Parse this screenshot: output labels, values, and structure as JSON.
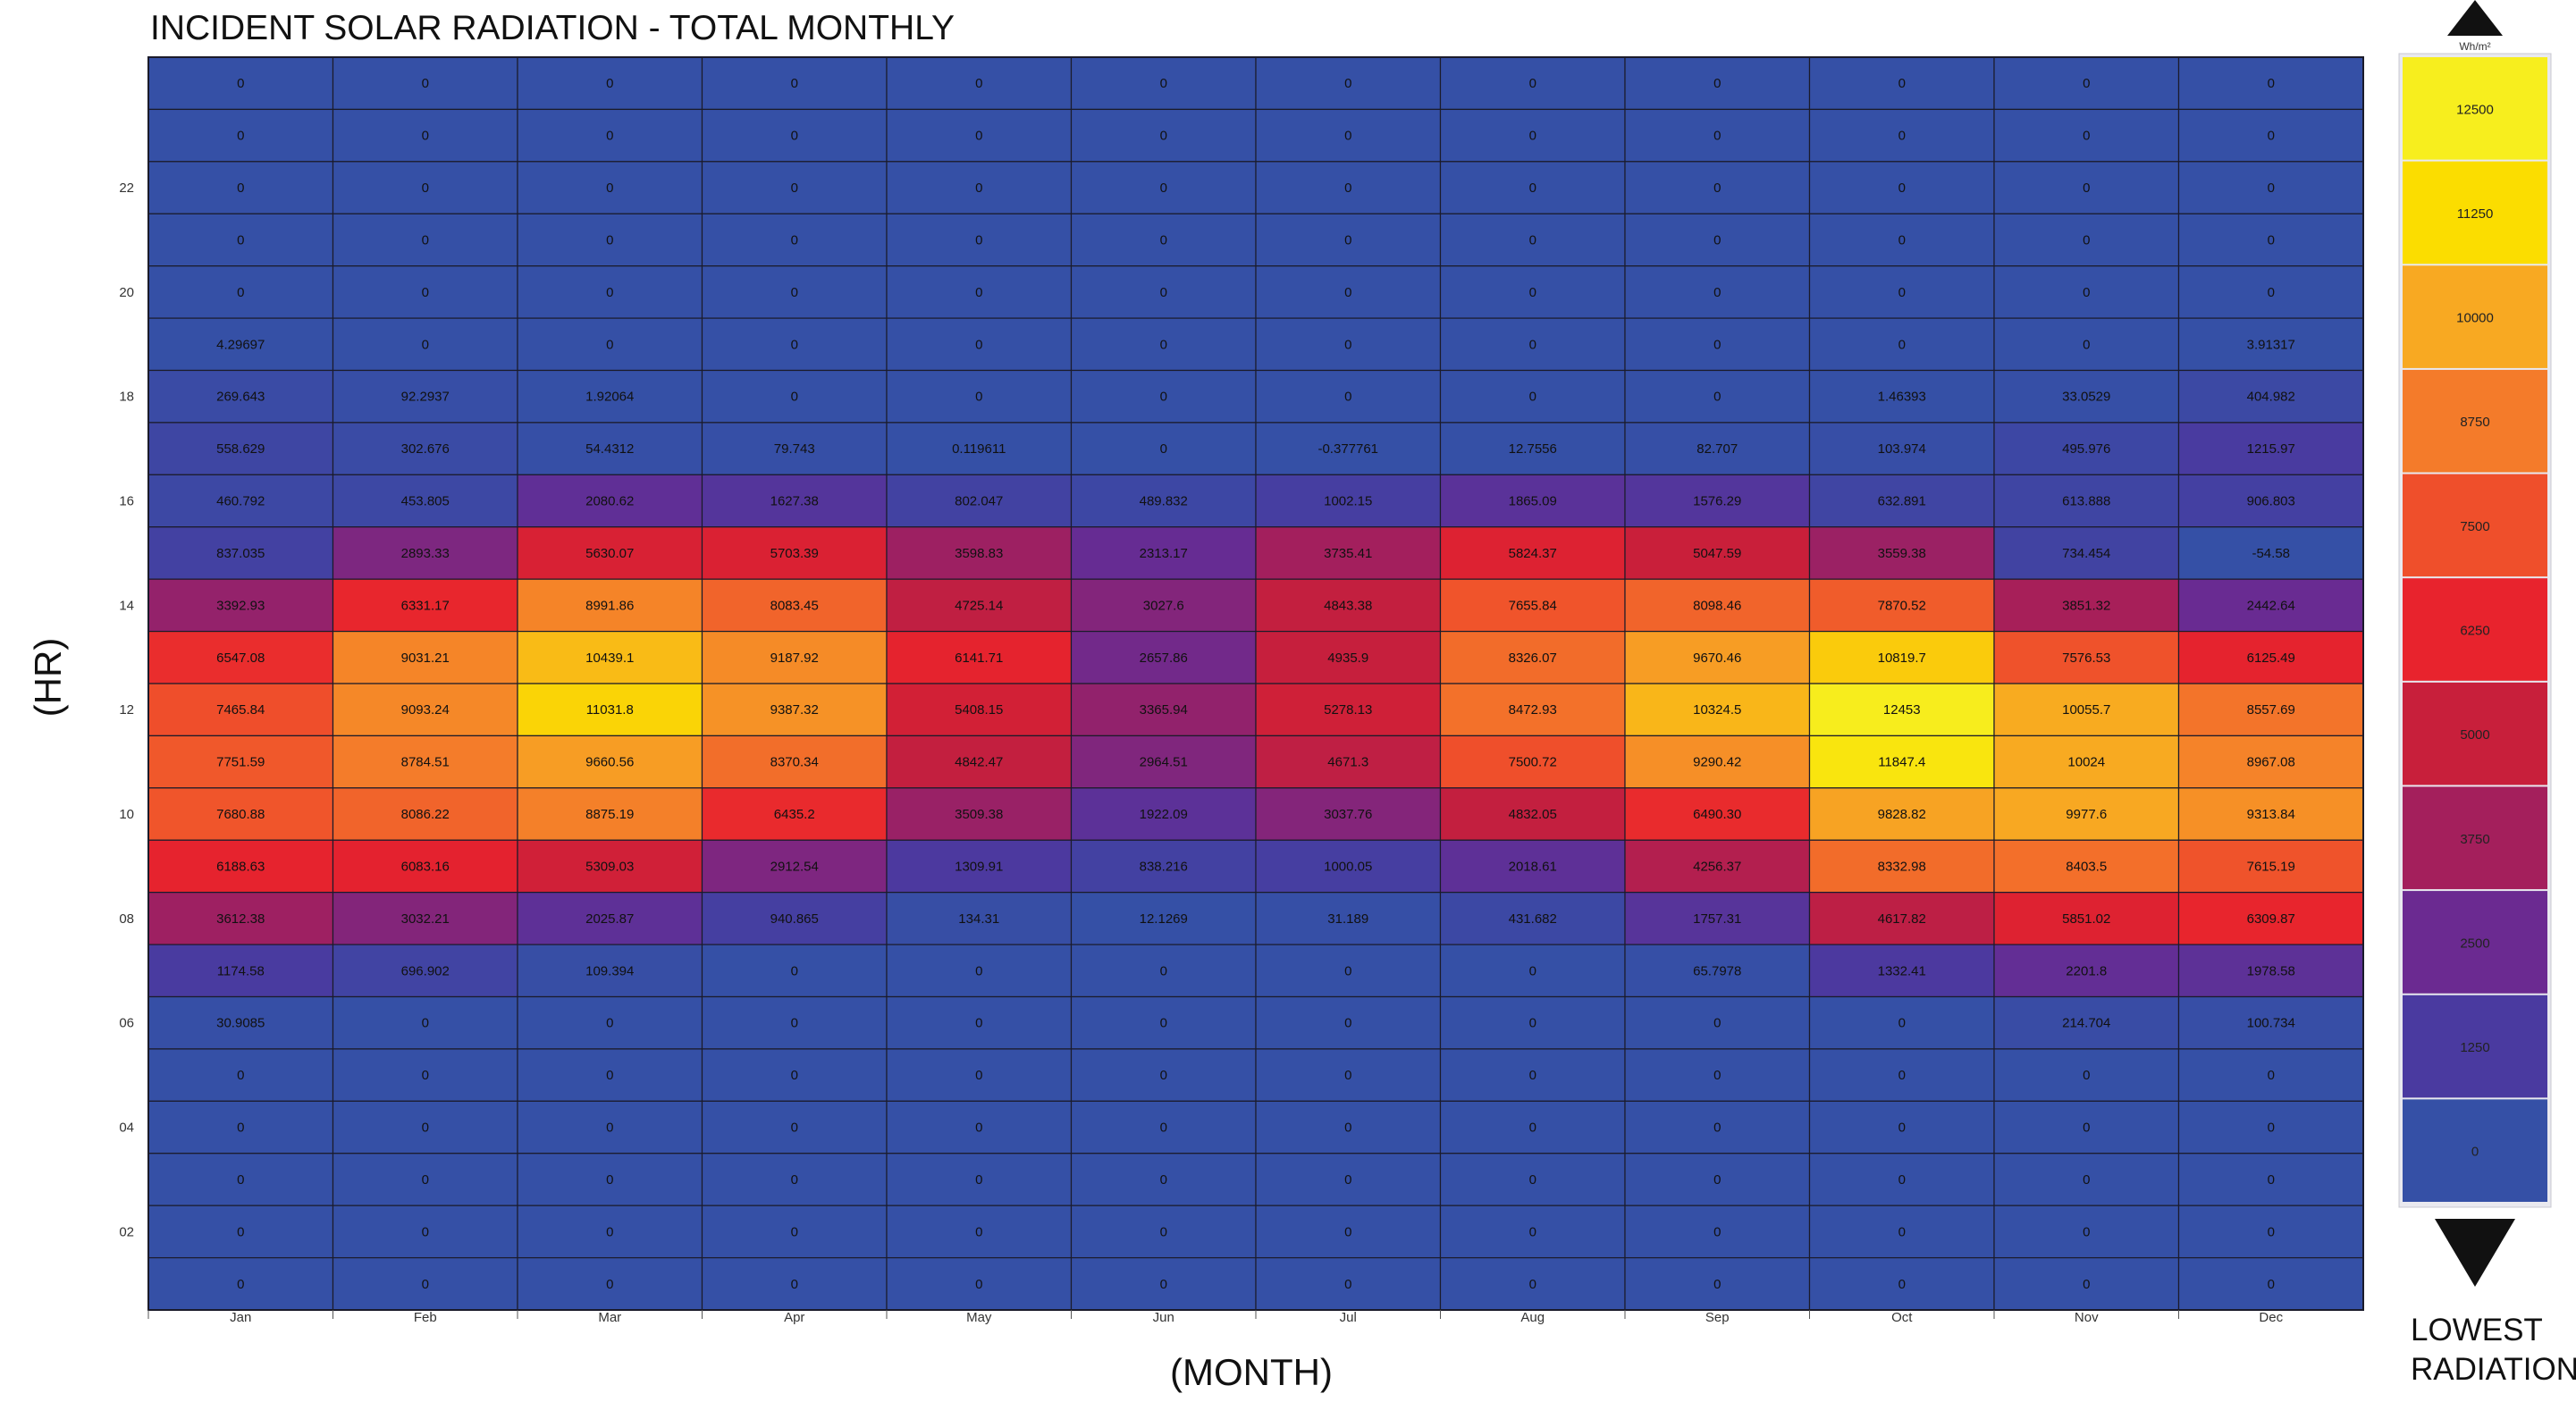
{
  "chart_data": {
    "type": "heatmap",
    "title": "INCIDENT SOLAR RADIATION - TOTAL MONTHLY",
    "xlabel": "(MONTH)",
    "ylabel": "(HR)",
    "months": [
      "Jan",
      "Feb",
      "Mar",
      "Apr",
      "May",
      "Jun",
      "Jul",
      "Aug",
      "Sep",
      "Oct",
      "Nov",
      "Dec"
    ],
    "rows": [
      [
        "0",
        "0",
        "0",
        "0",
        "0",
        "0",
        "0",
        "0",
        "0",
        "0",
        "0",
        "0"
      ],
      [
        "0",
        "0",
        "0",
        "0",
        "0",
        "0",
        "0",
        "0",
        "0",
        "0",
        "0",
        "0"
      ],
      [
        "0",
        "0",
        "0",
        "0",
        "0",
        "0",
        "0",
        "0",
        "0",
        "0",
        "0",
        "0"
      ],
      [
        "0",
        "0",
        "0",
        "0",
        "0",
        "0",
        "0",
        "0",
        "0",
        "0",
        "0",
        "0"
      ],
      [
        "0",
        "0",
        "0",
        "0",
        "0",
        "0",
        "0",
        "0",
        "0",
        "0",
        "0",
        "0"
      ],
      [
        "4.29697",
        "0",
        "0",
        "0",
        "0",
        "0",
        "0",
        "0",
        "0",
        "0",
        "0",
        "3.91317"
      ],
      [
        "269.643",
        "92.2937",
        "1.92064",
        "0",
        "0",
        "0",
        "0",
        "0",
        "0",
        "1.46393",
        "33.0529",
        "404.982"
      ],
      [
        "558.629",
        "302.676",
        "54.4312",
        "79.743",
        "0.119611",
        "0",
        "-0.377761",
        "12.7556",
        "82.707",
        "103.974",
        "495.976",
        "1215.97"
      ],
      [
        "460.792",
        "453.805",
        "2080.62",
        "1627.38",
        "802.047",
        "489.832",
        "1002.15",
        "1865.09",
        "1576.29",
        "632.891",
        "613.888",
        "906.803"
      ],
      [
        "837.035",
        "2893.33",
        "5630.07",
        "5703.39",
        "3598.83",
        "2313.17",
        "3735.41",
        "5824.37",
        "5047.59",
        "3559.38",
        "734.454",
        "-54.58"
      ],
      [
        "3392.93",
        "6331.17",
        "8991.86",
        "8083.45",
        "4725.14",
        "3027.6",
        "4843.38",
        "7655.84",
        "8098.46",
        "7870.52",
        "3851.32",
        "2442.64"
      ],
      [
        "6547.08",
        "9031.21",
        "10439.1",
        "9187.92",
        "6141.71",
        "2657.86",
        "4935.9",
        "8326.07",
        "9670.46",
        "10819.7",
        "7576.53",
        "6125.49"
      ],
      [
        "7465.84",
        "9093.24",
        "11031.8",
        "9387.32",
        "5408.15",
        "3365.94",
        "5278.13",
        "8472.93",
        "10324.5",
        "12453",
        "10055.7",
        "8557.69"
      ],
      [
        "7751.59",
        "8784.51",
        "9660.56",
        "8370.34",
        "4842.47",
        "2964.51",
        "4671.3",
        "7500.72",
        "9290.42",
        "11847.4",
        "10024",
        "8967.08"
      ],
      [
        "7680.88",
        "8086.22",
        "8875.19",
        "6435.2",
        "3509.38",
        "1922.09",
        "3037.76",
        "4832.05",
        "6490.30",
        "9828.82",
        "9977.6",
        "9313.84"
      ],
      [
        "6188.63",
        "6083.16",
        "5309.03",
        "2912.54",
        "1309.91",
        "838.216",
        "1000.05",
        "2018.61",
        "4256.37",
        "8332.98",
        "8403.5",
        "7615.19"
      ],
      [
        "3612.38",
        "3032.21",
        "2025.87",
        "940.865",
        "134.31",
        "12.1269",
        "31.189",
        "431.682",
        "1757.31",
        "4617.82",
        "5851.02",
        "6309.87"
      ],
      [
        "1174.58",
        "696.902",
        "109.394",
        "0",
        "0",
        "0",
        "0",
        "0",
        "65.7978",
        "1332.41",
        "2201.8",
        "1978.58"
      ],
      [
        "30.9085",
        "0",
        "0",
        "0",
        "0",
        "0",
        "0",
        "0",
        "0",
        "0",
        "214.704",
        "100.734"
      ],
      [
        "0",
        "0",
        "0",
        "0",
        "0",
        "0",
        "0",
        "0",
        "0",
        "0",
        "0",
        "0"
      ],
      [
        "0",
        "0",
        "0",
        "0",
        "0",
        "0",
        "0",
        "0",
        "0",
        "0",
        "0",
        "0"
      ],
      [
        "0",
        "0",
        "0",
        "0",
        "0",
        "0",
        "0",
        "0",
        "0",
        "0",
        "0",
        "0"
      ],
      [
        "0",
        "0",
        "0",
        "0",
        "0",
        "0",
        "0",
        "0",
        "0",
        "0",
        "0",
        "0"
      ],
      [
        "0",
        "0",
        "0",
        "0",
        "0",
        "0",
        "0",
        "0",
        "0",
        "0",
        "0",
        "0"
      ]
    ],
    "y_tick_labels": [
      "",
      "",
      "22",
      "",
      "20",
      "",
      "18",
      "",
      "16",
      "",
      "14",
      "",
      "12",
      "",
      "10",
      "",
      "08",
      "",
      "06",
      "",
      "04",
      "",
      "02",
      ""
    ],
    "legend": {
      "unit": "Wh/m²",
      "bands": [
        {
          "label": "12500",
          "color": "#f7ee1e"
        },
        {
          "label": "11250",
          "color": "#fbdd00"
        },
        {
          "label": "10000",
          "color": "#f8a922"
        },
        {
          "label": "8750",
          "color": "#f47b2a"
        },
        {
          "label": "7500",
          "color": "#ef4f2b"
        },
        {
          "label": "6250",
          "color": "#e8232d"
        },
        {
          "label": "5000",
          "color": "#c81f3b"
        },
        {
          "label": "3750",
          "color": "#a41f5c"
        },
        {
          "label": "2500",
          "color": "#6b2a91"
        },
        {
          "label": "1250",
          "color": "#4a3aa0"
        },
        {
          "label": "0",
          "color": "#3550a6"
        }
      ],
      "caption_line1": "LOWEST",
      "caption_line2": "RADIATION"
    },
    "color_scale": [
      [
        0,
        "#3550a6"
      ],
      [
        1250,
        "#4a3aa0"
      ],
      [
        2500,
        "#6b2a91"
      ],
      [
        3750,
        "#a41f5c"
      ],
      [
        5000,
        "#c81f3b"
      ],
      [
        6250,
        "#e8232d"
      ],
      [
        7500,
        "#ef4f2b"
      ],
      [
        8750,
        "#f47b2a"
      ],
      [
        10000,
        "#f8a922"
      ],
      [
        11250,
        "#fbdd00"
      ],
      [
        12500,
        "#f7ee1e"
      ]
    ]
  }
}
